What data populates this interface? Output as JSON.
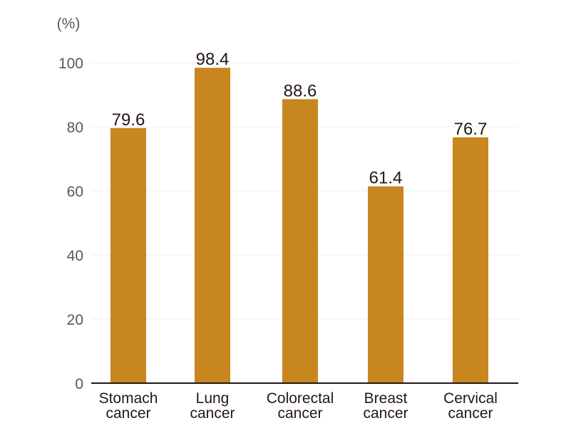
{
  "chart_data": {
    "type": "bar",
    "unit_label": "(%)",
    "categories": [
      [
        "Stomach",
        "cancer"
      ],
      [
        "Lung",
        "cancer"
      ],
      [
        "Colorectal",
        "cancer"
      ],
      [
        "Breast",
        "cancer"
      ],
      [
        "Cervical",
        "cancer"
      ]
    ],
    "values": [
      79.6,
      98.4,
      88.6,
      61.4,
      76.7
    ],
    "value_labels": [
      "79.6",
      "98.4",
      "88.6",
      "61.4",
      "76.7"
    ],
    "yticks": [
      0,
      20,
      40,
      60,
      80,
      100
    ],
    "ylim": [
      0,
      100
    ],
    "grid": true,
    "bar_color": "#c8861e",
    "gridline_color": "#eeeeee",
    "axis_color": "#231815"
  }
}
